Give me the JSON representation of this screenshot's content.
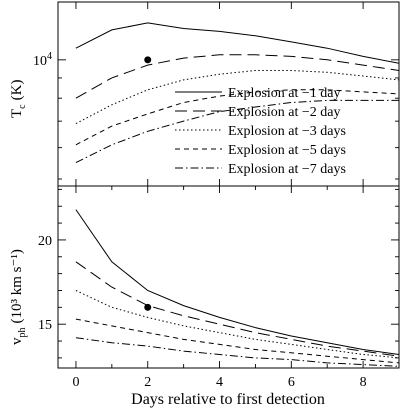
{
  "chart_data": [
    {
      "type": "line",
      "ylabel": {
        "main": "T",
        "sub": "c",
        "unit": "(K)"
      },
      "y_scale": "log",
      "ylim": [
        4800,
        14000
      ],
      "y_tick_labels": [
        {
          "base": "10",
          "exp": "4",
          "value": 10000
        }
      ],
      "xlim": [
        -0.5,
        9
      ],
      "x": [
        0,
        1,
        2,
        3,
        4,
        5,
        6,
        7,
        8,
        9
      ],
      "series": [
        {
          "name": "Explosion at −1 day",
          "dash": "",
          "values": [
            10700,
            11900,
            12400,
            12000,
            11800,
            11500,
            11100,
            10700,
            10200,
            9800
          ]
        },
        {
          "name": "Explosion at −2 day",
          "dash": "12 6",
          "values": [
            8000,
            9000,
            9700,
            10100,
            10300,
            10300,
            10200,
            10000,
            9700,
            9400
          ]
        },
        {
          "name": "Explosion at −3 days",
          "dash": "1.5 2.5",
          "values": [
            6900,
            7700,
            8400,
            8900,
            9200,
            9400,
            9400,
            9300,
            9100,
            8900
          ]
        },
        {
          "name": "Explosion at −5 days",
          "dash": "5 4",
          "values": [
            6100,
            6800,
            7300,
            7800,
            8100,
            8300,
            8400,
            8400,
            8300,
            8200
          ]
        },
        {
          "name": "Explosion at −7 days",
          "dash": "8 3 1.5 3",
          "values": [
            5500,
            6100,
            6600,
            7000,
            7400,
            7600,
            7800,
            7900,
            7900,
            7900
          ]
        }
      ],
      "marker": {
        "x": 2,
        "y": 10000
      },
      "legend_position": "right"
    },
    {
      "type": "line",
      "ylabel": {
        "main": "v",
        "sub": "ph",
        "unit": "(10³ km s⁻¹)"
      },
      "xlabel": "Days relative to first detection",
      "ylim": [
        12.4,
        23.2
      ],
      "xlim": [
        -0.5,
        9
      ],
      "x_ticks": [
        0,
        2,
        4,
        6,
        8
      ],
      "y_ticks": [
        15,
        20
      ],
      "x": [
        0,
        1,
        2,
        3,
        4,
        5,
        6,
        7,
        8,
        9
      ],
      "series": [
        {
          "name": "Explosion at −1 day",
          "dash": "",
          "values": [
            21.8,
            18.7,
            17.0,
            16.1,
            15.4,
            14.8,
            14.3,
            13.9,
            13.5,
            13.2
          ]
        },
        {
          "name": "Explosion at −2 day",
          "dash": "12 6",
          "values": [
            18.7,
            17.2,
            16.1,
            15.5,
            15.0,
            14.5,
            14.1,
            13.7,
            13.4,
            13.1
          ]
        },
        {
          "name": "Explosion at −3 days",
          "dash": "1.5 2.5",
          "values": [
            17.0,
            16.0,
            15.4,
            14.9,
            14.5,
            14.1,
            13.8,
            13.5,
            13.2,
            13.0
          ]
        },
        {
          "name": "Explosion at −5 days",
          "dash": "5 4",
          "values": [
            15.3,
            14.9,
            14.5,
            14.1,
            13.8,
            13.5,
            13.3,
            13.1,
            12.9,
            12.7
          ]
        },
        {
          "name": "Explosion at −7 days",
          "dash": "8 3 1.5 3",
          "values": [
            14.2,
            13.9,
            13.7,
            13.4,
            13.2,
            13.0,
            12.9,
            12.7,
            12.6,
            12.5
          ]
        }
      ],
      "marker": {
        "x": 2,
        "y": 16.0
      }
    }
  ]
}
